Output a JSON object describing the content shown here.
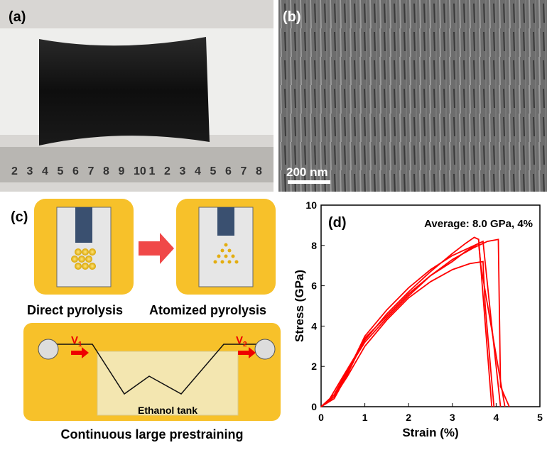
{
  "panels": {
    "a": {
      "label": "(a)",
      "ruler": [
        "2",
        "3",
        "4",
        "5",
        "6",
        "7",
        "8",
        "9",
        "10",
        "1",
        "2",
        "3",
        "4",
        "5",
        "6",
        "7",
        "8"
      ]
    },
    "b": {
      "label": "(b)",
      "scale_bar": "200 nm"
    },
    "c": {
      "label": "(c)",
      "direct": "Direct pyrolysis",
      "atomized": "Atomized pyrolysis",
      "v1": "V",
      "v1_sub": "1",
      "v2": "V",
      "v2_sub": "2",
      "tank": "Ethanol tank",
      "caption": "Continuous large prestraining"
    }
  },
  "chart_data": {
    "type": "line",
    "label": "(d)",
    "annotation": "Average: 8.0 GPa, 4%",
    "xlabel": "Strain (%)",
    "ylabel": "Stress (GPa)",
    "xlim": [
      0,
      5
    ],
    "ylim": [
      0,
      10
    ],
    "xticks": [
      0,
      1,
      2,
      3,
      4,
      5
    ],
    "yticks": [
      0,
      2,
      4,
      6,
      8,
      10
    ],
    "series": [
      {
        "color": "#ff0000",
        "x": [
          0,
          0.2,
          0.5,
          1,
          1.5,
          2,
          2.5,
          3,
          3.3,
          3.5,
          3.6,
          3.9
        ],
        "values": [
          0,
          0.4,
          1.5,
          3.3,
          4.6,
          5.7,
          6.7,
          7.6,
          8.1,
          8.4,
          8.3,
          0
        ]
      },
      {
        "color": "#ff0000",
        "x": [
          0,
          0.3,
          0.6,
          1,
          1.5,
          2,
          2.5,
          3,
          3.5,
          3.8,
          4.05,
          4.1,
          4.3
        ],
        "values": [
          0,
          0.6,
          1.8,
          3.2,
          4.4,
          5.5,
          6.5,
          7.3,
          7.9,
          8.2,
          8.3,
          1,
          0
        ]
      },
      {
        "color": "#ff0000",
        "x": [
          0,
          0.3,
          0.6,
          1,
          1.5,
          2,
          2.5,
          3,
          3.4,
          3.7,
          3.75,
          3.95
        ],
        "values": [
          0,
          0.5,
          1.5,
          3.0,
          4.3,
          5.4,
          6.2,
          6.8,
          7.1,
          7.2,
          5,
          0
        ]
      },
      {
        "color": "#ff0000",
        "x": [
          0,
          0.3,
          0.6,
          1,
          1.5,
          2,
          2.5,
          3,
          3.4,
          3.7,
          3.9,
          4.1
        ],
        "values": [
          0,
          0.5,
          1.7,
          3.5,
          4.8,
          5.9,
          6.8,
          7.5,
          7.9,
          8.2,
          4,
          0
        ]
      },
      {
        "color": "#ff0000",
        "x": [
          0,
          0.3,
          0.6,
          1,
          1.5,
          2,
          2.5,
          3,
          3.3,
          3.6,
          3.65,
          4.2
        ],
        "values": [
          0,
          0.4,
          1.6,
          3.4,
          4.5,
          5.6,
          6.5,
          7.2,
          7.7,
          8.1,
          7,
          0
        ]
      }
    ]
  }
}
